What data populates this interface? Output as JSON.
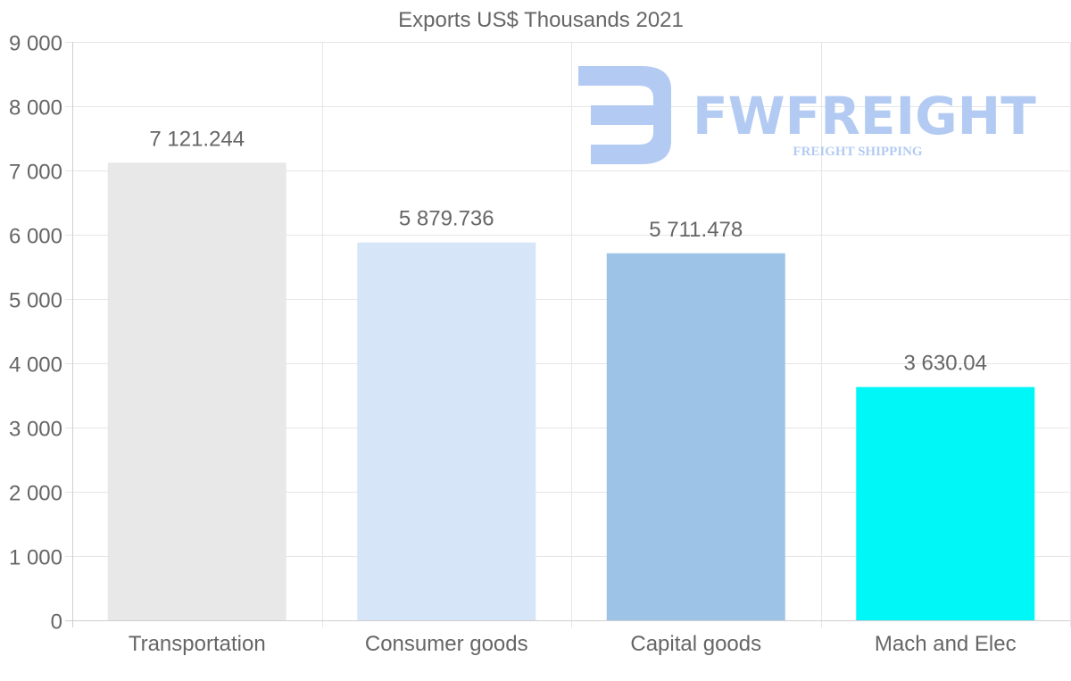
{
  "chart_data": {
    "type": "bar",
    "title": "Exports US$ Thousands 2021",
    "categories": [
      "Transportation",
      "Consumer goods",
      "Capital goods",
      "Mach and Elec"
    ],
    "values": [
      7121.244,
      5879.736,
      5711.478,
      3630.04
    ],
    "data_labels": [
      "7 121.244",
      "5 879.736",
      "5 711.478",
      "3 630.04"
    ],
    "bar_colors": [
      "#e8e8e8",
      "#d6e6f8",
      "#9dc3e6",
      "#00f7f7"
    ],
    "ylim": [
      0,
      9000
    ],
    "yticks": [
      0,
      1000,
      2000,
      3000,
      4000,
      5000,
      6000,
      7000,
      8000,
      9000
    ],
    "ytick_labels": [
      "0",
      "1 000",
      "2 000",
      "3 000",
      "4 000",
      "5 000",
      "6 000",
      "7 000",
      "8 000",
      "9 000"
    ],
    "xlabel": "",
    "ylabel": "",
    "grid": true,
    "legend": "none"
  },
  "watermark": {
    "brand": "FWFREIGHT",
    "tagline": "FREIGHT SHIPPING",
    "color": "#b3cbf2"
  }
}
